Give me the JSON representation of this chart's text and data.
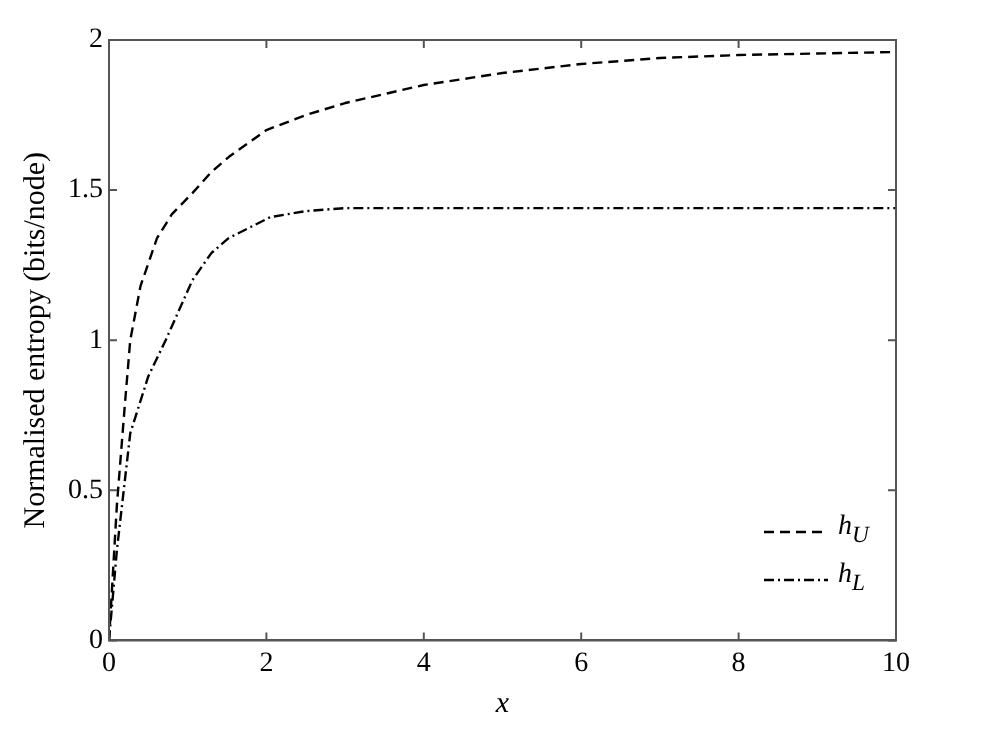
{
  "chart_data": {
    "type": "line",
    "xlabel": "x",
    "ylabel": "Normalised entropy (bits/node)",
    "xlim": [
      0,
      10
    ],
    "ylim": [
      0,
      2
    ],
    "xticks": [
      0,
      2,
      4,
      6,
      8,
      10
    ],
    "yticks": [
      0,
      0.5,
      1,
      1.5,
      2
    ],
    "grid": false,
    "legend": "bottom right",
    "marker": "none",
    "series": [
      {
        "name": "h$_{U}$",
        "color": "#000000",
        "line_style": "dashed",
        "x": [
          0,
          0.1,
          0.2,
          0.27,
          0.4,
          0.61,
          0.8,
          1.06,
          1.3,
          1.52,
          2,
          2.5,
          3,
          4,
          5,
          6,
          7,
          8,
          9,
          10
        ],
        "values": [
          0,
          0.45,
          0.78,
          1.0,
          1.18,
          1.34,
          1.42,
          1.49,
          1.56,
          1.61,
          1.7,
          1.75,
          1.79,
          1.85,
          1.89,
          1.92,
          1.94,
          1.95,
          1.955,
          1.96
        ]
      },
      {
        "name": "h$_{L}$",
        "color": "#000000",
        "line_style": "dashdot",
        "x": [
          0,
          0.1,
          0.27,
          0.5,
          0.72,
          1.06,
          1.3,
          1.52,
          2.05,
          2.5,
          3,
          4,
          5,
          6,
          8,
          10
        ],
        "values": [
          0,
          0.3,
          0.69,
          0.88,
          1.0,
          1.2,
          1.29,
          1.34,
          1.41,
          1.43,
          1.44,
          1.44,
          1.44,
          1.44,
          1.44,
          1.44
        ]
      }
    ]
  }
}
